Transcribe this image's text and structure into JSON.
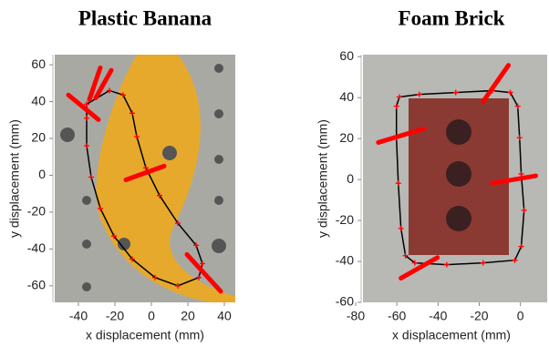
{
  "chart_data": [
    {
      "type": "line",
      "title": "Plastic Banana",
      "xlabel": "x displacement (mm)",
      "ylabel": "y displacement (mm)",
      "xlim": [
        -53,
        46
      ],
      "ylim": [
        -69,
        65.5
      ],
      "xticks": [
        -40,
        -20,
        0,
        20,
        40
      ],
      "yticks": [
        -60,
        -40,
        -20,
        0,
        20,
        40,
        60
      ],
      "series": [
        {
          "color": "#000000",
          "width": 1.5,
          "x": [
            -35.5,
            -23,
            -15.5,
            -10.5,
            -8,
            -3,
            4.5,
            14.5,
            24.5,
            28,
            26,
            14.5,
            2,
            -10.5,
            -20.5,
            -28,
            -33,
            -35.5,
            -35.5,
            -35.5
          ],
          "values": [
            38.6,
            46,
            43.6,
            33.7,
            21,
            4,
            -11,
            -26,
            -38,
            -48,
            -55.5,
            -60,
            -55.5,
            -45.5,
            -33,
            -18,
            -1,
            16,
            31,
            38.6
          ]
        },
        {
          "color": "#ff0000",
          "marker": "+",
          "x": [
            -35.5,
            -23,
            -15.5,
            -10.5,
            -8,
            -3,
            4.5,
            14.5,
            24.5,
            28,
            26,
            14.5,
            2,
            -10.5,
            -20.5,
            -28,
            -33,
            -35.5,
            -35.5
          ],
          "values": [
            38.6,
            46,
            43.6,
            33.7,
            21,
            4,
            -11,
            -26,
            -38,
            -48,
            -55.5,
            -60,
            -55.5,
            -45.5,
            -33,
            -18,
            -1,
            16,
            31
          ]
        },
        {
          "color": "#ff0000",
          "width": 5,
          "x": [
            -45.5,
            -29,
            null,
            -28,
            -34,
            null,
            -22,
            -30.5,
            null,
            -14,
            7,
            null,
            38,
            19.5
          ],
          "values": [
            43.6,
            30.2,
            null,
            58.4,
            41.1,
            null,
            57,
            42,
            null,
            -2.5,
            5,
            null,
            -63,
            -43
          ]
        }
      ]
    },
    {
      "type": "line",
      "title": "Foam Brick",
      "xlabel": "x displacement (mm)",
      "ylabel": "y displacement (mm)",
      "xlim": [
        -80,
        13
      ],
      "ylim": [
        -60,
        61
      ],
      "xticks": [
        -80,
        -60,
        -40,
        -20,
        0
      ],
      "yticks": [
        -60,
        -40,
        -20,
        0,
        20,
        40,
        60
      ],
      "series": [
        {
          "color": "#000000",
          "width": 1.5,
          "x": [
            -58.8,
            -49.1,
            -31.4,
            -13.7,
            -4.9,
            -1.3,
            -0.4,
            0.4,
            1.8,
            0.4,
            -2.7,
            -18.1,
            -35.8,
            -51.3,
            -55.8,
            -58,
            -59.3,
            -60.2,
            -60.2,
            -58.8
          ],
          "values": [
            40.3,
            41.6,
            42.5,
            43.4,
            42.5,
            35.8,
            20.4,
            2.7,
            -15,
            -32.7,
            -39.4,
            -40.7,
            -41.6,
            -40.7,
            -37.2,
            -23.9,
            -1.8,
            20.4,
            35.8,
            40.3
          ]
        },
        {
          "color": "#ff0000",
          "marker": "+",
          "x": [
            -58.8,
            -49.1,
            -31.4,
            -13.7,
            -4.9,
            -1.3,
            -0.4,
            0.4,
            1.8,
            0.4,
            -2.7,
            -18.1,
            -35.8,
            -51.3,
            -55.8,
            -58,
            -59.3,
            -60.2,
            -60.2
          ],
          "values": [
            40.3,
            41.6,
            42.5,
            43.4,
            42.5,
            35.8,
            20.4,
            2.7,
            -15,
            -32.7,
            -39.4,
            -40.7,
            -41.6,
            -40.7,
            -37.2,
            -23.9,
            -1.8,
            20.4,
            35.8
          ]
        },
        {
          "color": "#ff0000",
          "width": 5,
          "x": [
            -69,
            -46.9,
            null,
            -18.1,
            -5.8,
            null,
            -13.7,
            7.5,
            null,
            -58,
            -40.3
          ],
          "values": [
            18.1,
            24.8,
            null,
            38.1,
            55.8,
            null,
            -1.8,
            1.8,
            null,
            -48.2,
            -38.1
          ]
        }
      ]
    }
  ]
}
